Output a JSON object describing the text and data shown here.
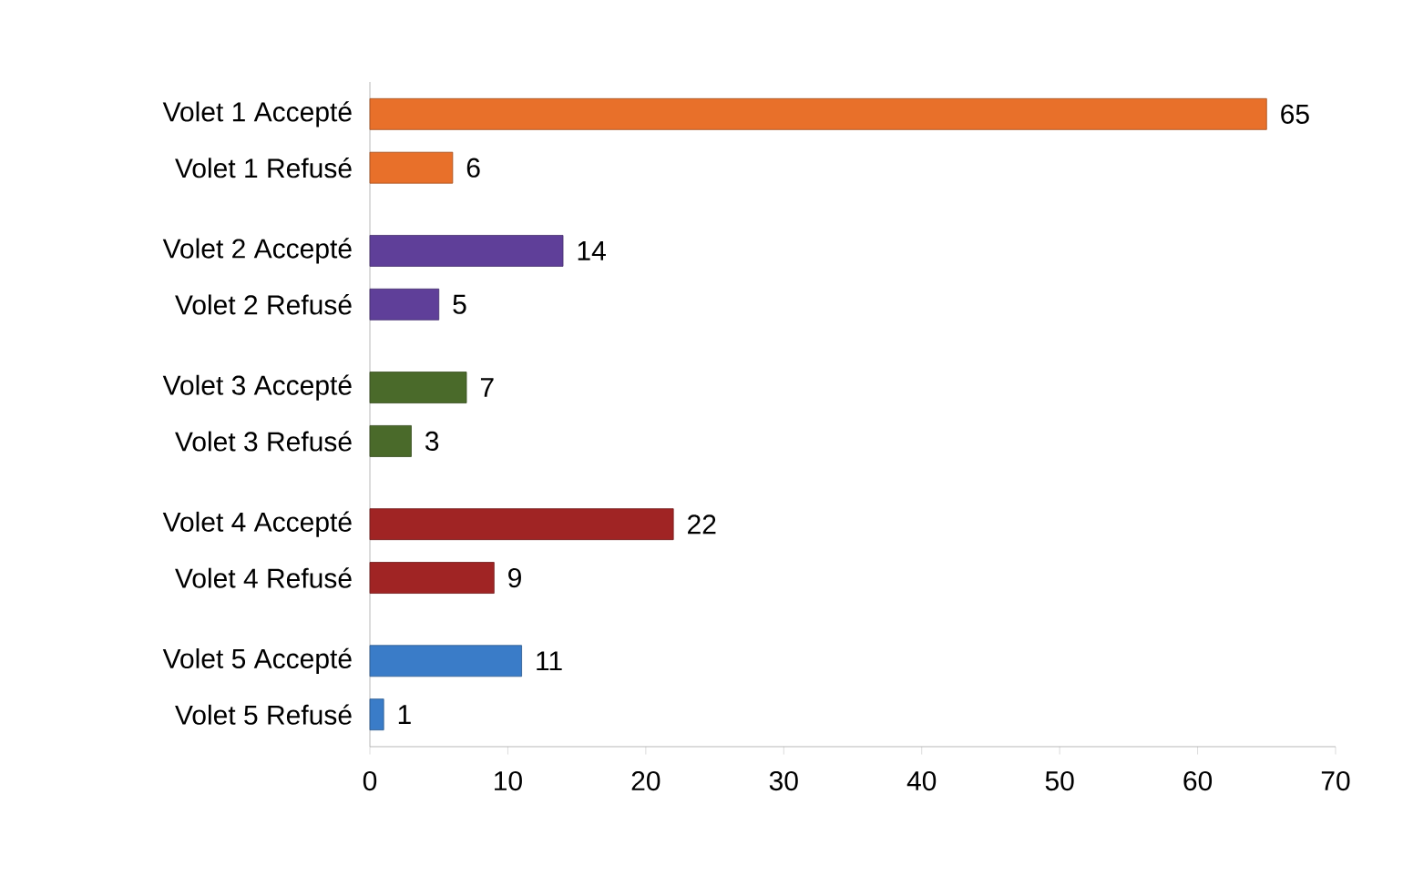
{
  "chart_data": {
    "type": "bar",
    "orientation": "horizontal",
    "categories": [
      "Volet 1 Accepté",
      "Volet 1 Refusé",
      "Volet 2 Accepté",
      "Volet 2 Refusé",
      "Volet 3 Accepté",
      "Volet 3 Refusé",
      "Volet 4 Accepté",
      "Volet 4 Refusé",
      "Volet 5 Accepté",
      "Volet 5 Refusé"
    ],
    "values": [
      65,
      6,
      14,
      5,
      7,
      3,
      22,
      9,
      11,
      1
    ],
    "colors": [
      "#e8702a",
      "#e8702a",
      "#5f3f99",
      "#5f3f99",
      "#4a6a2a",
      "#4a6a2a",
      "#a02424",
      "#a02424",
      "#3a7cc8",
      "#3a7cc8"
    ],
    "xlim": [
      0,
      70
    ],
    "xticks": [
      0,
      10,
      20,
      30,
      40,
      50,
      60,
      70
    ],
    "data_labels": true
  }
}
